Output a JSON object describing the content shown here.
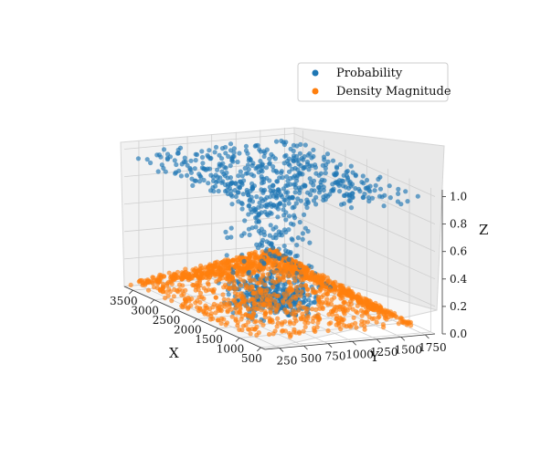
{
  "chart_data": {
    "type": "scatter3d",
    "xlabel": "X",
    "ylabel": "Y",
    "zlabel": "Z",
    "xlim": [
      400,
      3700
    ],
    "ylim": [
      100,
      1850
    ],
    "zlim": [
      0,
      1.05
    ],
    "xticks": [
      "500",
      "1000",
      "1500",
      "2000",
      "2500",
      "3000",
      "3500"
    ],
    "yticks": [
      "250",
      "500",
      "750",
      "1000",
      "1250",
      "1500",
      "1750"
    ],
    "zticks": [
      "0.0",
      "0.2",
      "0.4",
      "0.6",
      "0.8",
      "1.0"
    ],
    "grid": true,
    "legend": {
      "placement": "top-right"
    },
    "series": [
      {
        "name": "Probability",
        "color": "#1f77b4",
        "distribution": "clustered near z=1.0 and z=0.0 with sparse points between",
        "approx_points": 1000
      },
      {
        "name": "Density Magnitude",
        "color": "#ff7f0e",
        "distribution": "cone-shaped surface peaking at about z=0.45 near the center",
        "approx_points": 1500
      }
    ]
  }
}
